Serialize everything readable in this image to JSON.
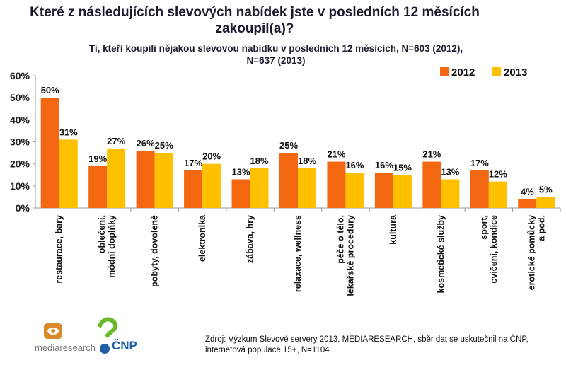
{
  "chart_data": {
    "type": "bar",
    "title": "Které z následujících slevových nabídek jste v posledních 12 měsících zakoupil(a)?",
    "subtitle": "Ti, kteří koupili nějakou slevovou nabídku v posledních 12 měsících, N=603  (2012), N=637 (2013)",
    "categories": [
      "restaurace, bary",
      "oblečení, módní doplňky",
      "pobyty, dovolené",
      "elektronika",
      "zábava, hry",
      "relaxace, wellness",
      "péče o tělo, lékařské procedury",
      "kultura",
      "kosmetické služby",
      "sport, cvičení, kondice",
      "erotické pomůcky a pod."
    ],
    "series": [
      {
        "name": "2012",
        "color": "#F2670F",
        "values": [
          50,
          19,
          26,
          17,
          13,
          25,
          21,
          16,
          21,
          17,
          4
        ]
      },
      {
        "name": "2013",
        "color": "#FFC000",
        "values": [
          31,
          27,
          25,
          20,
          18,
          18,
          16,
          15,
          13,
          12,
          5
        ]
      }
    ],
    "yticks": [
      "0%",
      "10%",
      "20%",
      "30%",
      "40%",
      "50%",
      "60%"
    ],
    "ylim": [
      0,
      60
    ],
    "legend_position": "top-right",
    "xlabel": "",
    "ylabel": ""
  },
  "source": "Zdroj: Výzkum Slevové servery 2013, MEDIARESEARCH, sběr dat se uskutečnil na ČNP, internetová populace 15+, N=1104",
  "logos": {
    "mediaresearch": "mediaresearch",
    "cnp": "ČNP"
  }
}
